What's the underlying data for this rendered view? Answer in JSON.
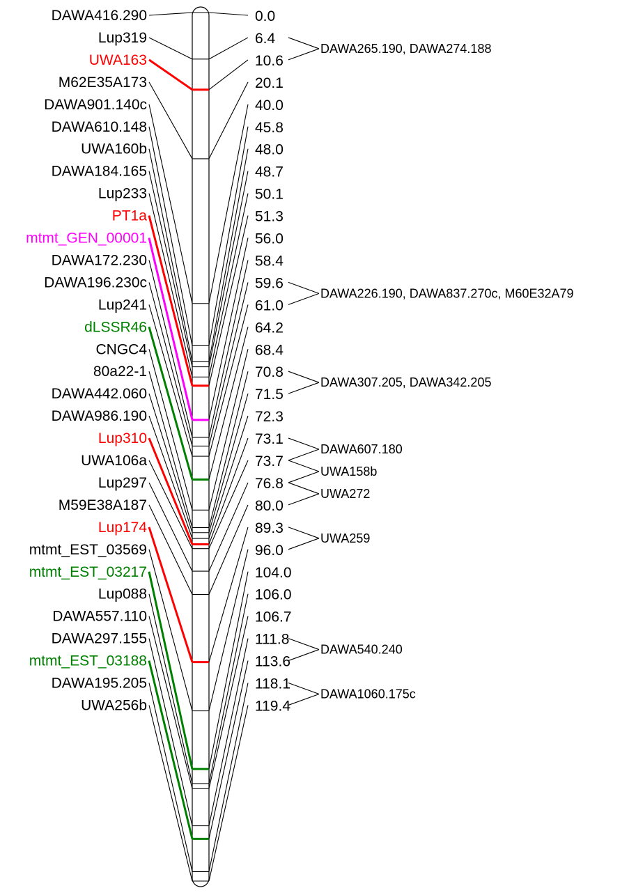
{
  "map": {
    "colors": {
      "default": "#000000",
      "red": "#ff0000",
      "magenta": "#ff00ff",
      "green": "#008000"
    },
    "max_position": 119.4,
    "markers": [
      {
        "name": "DAWA416.290",
        "position": "0.0",
        "color": "default"
      },
      {
        "name": "Lup319",
        "position": "6.4",
        "color": "default"
      },
      {
        "name": "UWA163",
        "position": "10.6",
        "color": "red"
      },
      {
        "name": "M62E35A173",
        "position": "20.1",
        "color": "default"
      },
      {
        "name": "DAWA901.140c",
        "position": "40.0",
        "color": "default"
      },
      {
        "name": "DAWA610.148",
        "position": "45.8",
        "color": "default"
      },
      {
        "name": "UWA160b",
        "position": "48.0",
        "color": "default"
      },
      {
        "name": "DAWA184.165",
        "position": "48.7",
        "color": "default"
      },
      {
        "name": "Lup233",
        "position": "50.1",
        "color": "default"
      },
      {
        "name": "PT1a",
        "position": "51.3",
        "color": "red"
      },
      {
        "name": "mtmt_GEN_00001",
        "position": "56.0",
        "color": "magenta"
      },
      {
        "name": "DAWA172.230",
        "position": "58.4",
        "color": "default"
      },
      {
        "name": "DAWA196.230c",
        "position": "59.6",
        "color": "default"
      },
      {
        "name": "Lup241",
        "position": "61.0",
        "color": "default"
      },
      {
        "name": "dLSSR46",
        "position": "64.2",
        "color": "green"
      },
      {
        "name": "CNGC4",
        "position": "68.4",
        "color": "default"
      },
      {
        "name": "80a22-1",
        "position": "70.8",
        "color": "default"
      },
      {
        "name": "DAWA442.060",
        "position": "71.5",
        "color": "default"
      },
      {
        "name": "DAWA986.190",
        "position": "72.3",
        "color": "default"
      },
      {
        "name": "Lup310",
        "position": "73.1",
        "color": "red"
      },
      {
        "name": "UWA106a",
        "position": "73.7",
        "color": "default"
      },
      {
        "name": "Lup297",
        "position": "76.8",
        "color": "default"
      },
      {
        "name": "M59E38A187",
        "position": "80.0",
        "color": "default"
      },
      {
        "name": "Lup174",
        "position": "89.3",
        "color": "red"
      },
      {
        "name": "mtmt_EST_03569",
        "position": "96.0",
        "color": "default"
      },
      {
        "name": "mtmt_EST_03217",
        "position": "104.0",
        "color": "green"
      },
      {
        "name": "Lup088",
        "position": "106.0",
        "color": "default"
      },
      {
        "name": "DAWA557.110",
        "position": "106.7",
        "color": "default"
      },
      {
        "name": "DAWA297.155",
        "position": "111.8",
        "color": "default"
      },
      {
        "name": "mtmt_EST_03188",
        "position": "113.6",
        "color": "green"
      },
      {
        "name": "DAWA195.205",
        "position": "118.1",
        "color": "default"
      },
      {
        "name": "UWA256b",
        "position": "119.4",
        "color": "default"
      }
    ],
    "extra_markers": [
      {
        "label": "DAWA265.190, DAWA274.188",
        "between": [
          "6.4",
          "10.6"
        ]
      },
      {
        "label": "DAWA226.190, DAWA837.270c, M60E32A79",
        "between": [
          "59.6",
          "61.0"
        ]
      },
      {
        "label": "DAWA307.205, DAWA342.205",
        "between": [
          "70.8",
          "71.5"
        ]
      },
      {
        "label": "DAWA607.180",
        "between": [
          "73.1",
          "73.7"
        ]
      },
      {
        "label": "UWA158b",
        "between": [
          "73.7",
          "76.8"
        ]
      },
      {
        "label": "UWA272",
        "between": [
          "76.8",
          "80.0"
        ]
      },
      {
        "label": "UWA259",
        "between": [
          "89.3",
          "96.0"
        ]
      },
      {
        "label": "DAWA540.240",
        "between": [
          "111.8",
          "113.6"
        ]
      },
      {
        "label": "DAWA1060.175c",
        "between": [
          "118.1",
          "119.4"
        ]
      }
    ]
  }
}
